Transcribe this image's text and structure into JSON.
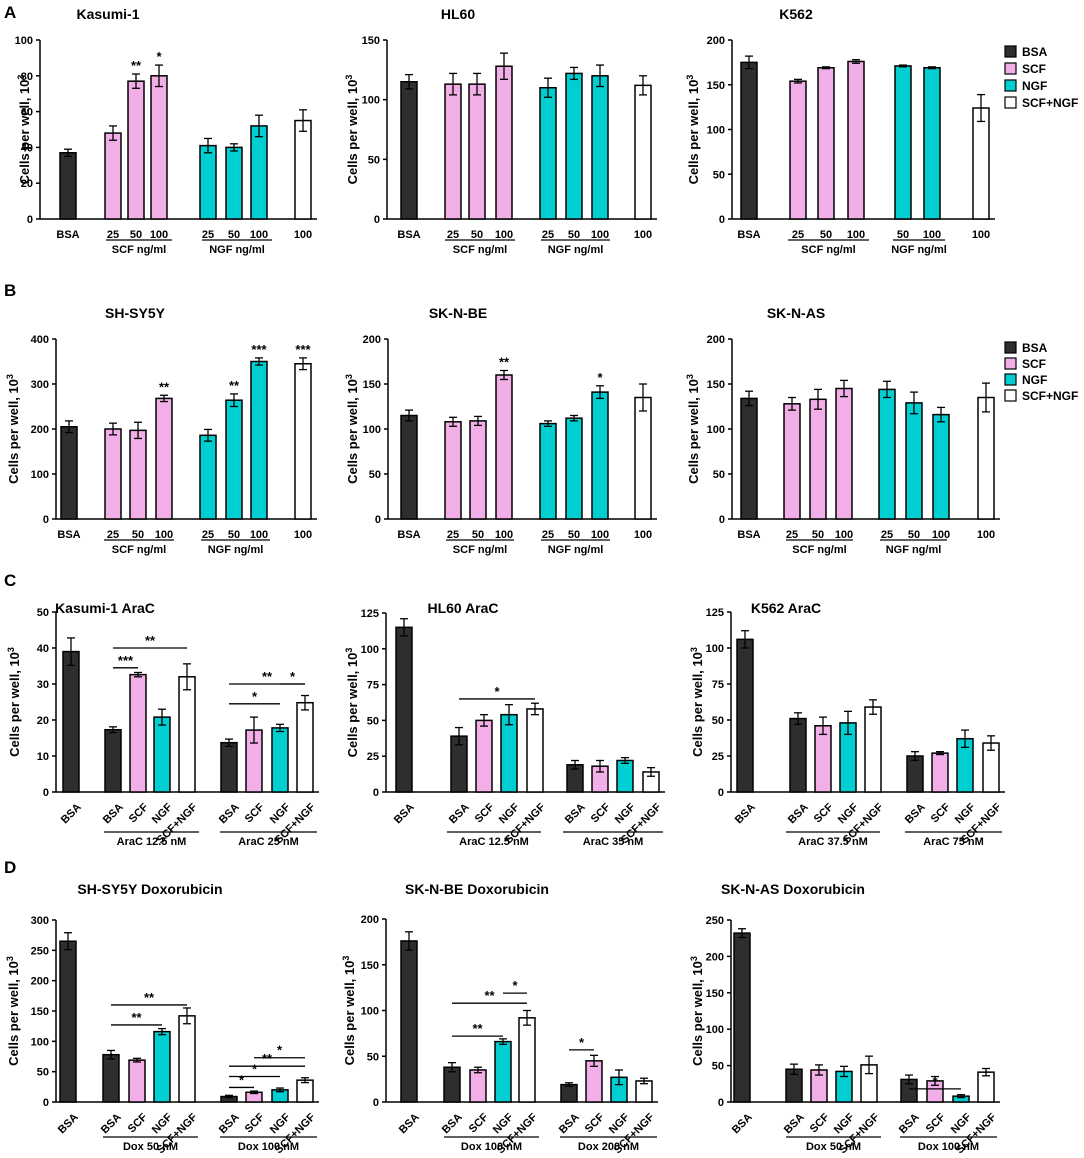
{
  "section_letters": [
    "A",
    "B",
    "C",
    "D"
  ],
  "legend": [
    {
      "label": "BSA",
      "color": "#2e2e2e"
    },
    {
      "label": "SCF",
      "color": "#f2aee6"
    },
    {
      "label": "NGF",
      "color": "#00ced1"
    },
    {
      "label": "SCF+NGF",
      "color": "#ffffff"
    }
  ],
  "colors": {
    "BSA": "#2e2e2e",
    "SCF": "#f2aee6",
    "NGF": "#00ced1",
    "SCF+NGF": "#ffffff",
    "axis": "#000000"
  },
  "chart_data": [
    {
      "type": "bar",
      "title": "Kasumi-1",
      "ylabel": "Cells per well, 10",
      "ylabel_sup": "3",
      "ylim": [
        0,
        100
      ],
      "yticks": [
        0,
        20,
        40,
        60,
        80,
        100
      ],
      "bars": [
        {
          "label": "BSA",
          "value": 37,
          "err": 2,
          "series": "BSA"
        },
        {
          "label": "25",
          "value": 48,
          "err": 4,
          "series": "SCF"
        },
        {
          "label": "50",
          "value": 77,
          "err": 4,
          "series": "SCF",
          "sig": "**"
        },
        {
          "label": "100",
          "value": 80,
          "err": 6,
          "series": "SCF",
          "sig": "*"
        },
        {
          "label": "25",
          "value": 41,
          "err": 4,
          "series": "NGF"
        },
        {
          "label": "50",
          "value": 40,
          "err": 2,
          "series": "NGF"
        },
        {
          "label": "100",
          "value": 52,
          "err": 6,
          "series": "NGF"
        },
        {
          "label": "100",
          "value": 55,
          "err": 6,
          "series": "SCF+NGF"
        }
      ],
      "groups": [
        {
          "label": "SCF ng/ml"
        },
        {
          "label": "NGF ng/ml"
        }
      ],
      "brackets": []
    },
    {
      "type": "bar",
      "title": "HL60",
      "ylabel": "Cells per well, 10",
      "ylabel_sup": "3",
      "ylim": [
        0,
        150
      ],
      "yticks": [
        0,
        50,
        100,
        150
      ],
      "bars": [
        {
          "label": "BSA",
          "value": 115,
          "err": 6,
          "series": "BSA"
        },
        {
          "label": "25",
          "value": 113,
          "err": 9,
          "series": "SCF"
        },
        {
          "label": "50",
          "value": 113,
          "err": 9,
          "series": "SCF"
        },
        {
          "label": "100",
          "value": 128,
          "err": 11,
          "series": "SCF"
        },
        {
          "label": "25",
          "value": 110,
          "err": 8,
          "series": "NGF"
        },
        {
          "label": "50",
          "value": 122,
          "err": 5,
          "series": "NGF"
        },
        {
          "label": "100",
          "value": 120,
          "err": 9,
          "series": "NGF"
        },
        {
          "label": "100",
          "value": 112,
          "err": 8,
          "series": "SCF+NGF"
        }
      ],
      "groups": [
        {
          "label": "SCF ng/ml"
        },
        {
          "label": "NGF ng/ml"
        }
      ],
      "brackets": []
    },
    {
      "type": "bar",
      "title": "K562",
      "ylabel": "Cells per well, 10",
      "ylabel_sup": "3",
      "ylim": [
        0,
        200
      ],
      "yticks": [
        0,
        50,
        100,
        150,
        200
      ],
      "bars": [
        {
          "label": "BSA",
          "value": 175,
          "err": 7,
          "series": "BSA"
        },
        {
          "label": "25",
          "value": 154,
          "err": 2,
          "series": "SCF"
        },
        {
          "label": "50",
          "value": 169,
          "err": 1,
          "series": "SCF"
        },
        {
          "label": "100",
          "value": 176,
          "err": 2,
          "series": "SCF"
        },
        {
          "label": "50",
          "value": 171,
          "err": 1,
          "series": "NGF"
        },
        {
          "label": "100",
          "value": 169,
          "err": 1,
          "series": "NGF"
        },
        {
          "label": "100",
          "value": 124,
          "err": 15,
          "series": "SCF+NGF"
        }
      ],
      "groups": [
        {
          "label": "SCF ng/ml"
        },
        {
          "label": "NGF ng/ml"
        }
      ],
      "brackets": []
    },
    {
      "type": "bar",
      "title": "SH-SY5Y",
      "ylabel": "Cells per well, 10",
      "ylabel_sup": "3",
      "ylim": [
        0,
        400
      ],
      "yticks": [
        0,
        100,
        200,
        300,
        400
      ],
      "bars": [
        {
          "label": "BSA",
          "value": 205,
          "err": 13,
          "series": "BSA"
        },
        {
          "label": "25",
          "value": 200,
          "err": 13,
          "series": "SCF"
        },
        {
          "label": "50",
          "value": 197,
          "err": 18,
          "series": "SCF"
        },
        {
          "label": "100",
          "value": 268,
          "err": 7,
          "series": "SCF",
          "sig": "**"
        },
        {
          "label": "25",
          "value": 186,
          "err": 13,
          "series": "NGF"
        },
        {
          "label": "50",
          "value": 264,
          "err": 14,
          "series": "NGF",
          "sig": "**"
        },
        {
          "label": "100",
          "value": 350,
          "err": 8,
          "series": "NGF",
          "sig": "***"
        },
        {
          "label": "100",
          "value": 345,
          "err": 13,
          "series": "SCF+NGF",
          "sig": "***"
        }
      ],
      "groups": [
        {
          "label": "SCF ng/ml"
        },
        {
          "label": "NGF ng/ml"
        }
      ],
      "brackets": []
    },
    {
      "type": "bar",
      "title": "SK-N-BE",
      "ylabel": "Cells per well, 10",
      "ylabel_sup": "3",
      "ylim": [
        0,
        200
      ],
      "yticks": [
        0,
        50,
        100,
        150,
        200
      ],
      "bars": [
        {
          "label": "BSA",
          "value": 115,
          "err": 6,
          "series": "BSA"
        },
        {
          "label": "25",
          "value": 108,
          "err": 5,
          "series": "SCF"
        },
        {
          "label": "50",
          "value": 109,
          "err": 5,
          "series": "SCF"
        },
        {
          "label": "100",
          "value": 160,
          "err": 5,
          "series": "SCF",
          "sig": "**"
        },
        {
          "label": "25",
          "value": 106,
          "err": 3,
          "series": "NGF"
        },
        {
          "label": "50",
          "value": 112,
          "err": 3,
          "series": "NGF"
        },
        {
          "label": "100",
          "value": 141,
          "err": 7,
          "series": "NGF",
          "sig": "*"
        },
        {
          "label": "100",
          "value": 135,
          "err": 15,
          "series": "SCF+NGF"
        }
      ],
      "groups": [
        {
          "label": "SCF ng/ml"
        },
        {
          "label": "NGF ng/ml"
        }
      ],
      "brackets": []
    },
    {
      "type": "bar",
      "title": "SK-N-AS",
      "ylabel": "Cells per well, 10",
      "ylabel_sup": "3",
      "ylim": [
        0,
        200
      ],
      "yticks": [
        0,
        50,
        100,
        150,
        200
      ],
      "bars": [
        {
          "label": "BSA",
          "value": 134,
          "err": 8,
          "series": "BSA"
        },
        {
          "label": "25",
          "value": 128,
          "err": 7,
          "series": "SCF"
        },
        {
          "label": "50",
          "value": 133,
          "err": 11,
          "series": "SCF"
        },
        {
          "label": "100",
          "value": 145,
          "err": 9,
          "series": "SCF"
        },
        {
          "label": "25",
          "value": 144,
          "err": 9,
          "series": "NGF"
        },
        {
          "label": "50",
          "value": 129,
          "err": 12,
          "series": "NGF"
        },
        {
          "label": "100",
          "value": 116,
          "err": 8,
          "series": "NGF"
        },
        {
          "label": "100",
          "value": 135,
          "err": 16,
          "series": "SCF+NGF"
        }
      ],
      "groups": [
        {
          "label": "SCF ng/ml"
        },
        {
          "label": "NGF ng/ml"
        }
      ],
      "brackets": []
    },
    {
      "type": "bar",
      "title": "Kasumi-1 AraC",
      "ylabel": "Cells per well, 10",
      "ylabel_sup": "3",
      "ylim": [
        0,
        50
      ],
      "yticks": [
        0,
        10,
        20,
        30,
        40,
        50
      ],
      "bars": [
        {
          "label": "BSA",
          "value": 39,
          "err": 3.8,
          "series": "BSA"
        },
        {
          "label": "BSA",
          "value": 17.3,
          "err": 0.8,
          "series": "BSA"
        },
        {
          "label": "SCF",
          "value": 32.6,
          "err": 0.6,
          "series": "SCF"
        },
        {
          "label": "NGF",
          "value": 20.8,
          "err": 2.2,
          "series": "NGF"
        },
        {
          "label": "SCF+NGF",
          "value": 32,
          "err": 3.6,
          "series": "SCF+NGF"
        },
        {
          "label": "BSA",
          "value": 13.7,
          "err": 1,
          "series": "BSA"
        },
        {
          "label": "SCF",
          "value": 17.2,
          "err": 3.6,
          "series": "SCF"
        },
        {
          "label": "NGF",
          "value": 17.8,
          "err": 1,
          "series": "NGF"
        },
        {
          "label": "SCF+NGF",
          "value": 24.8,
          "err": 2,
          "series": "SCF+NGF"
        }
      ],
      "groups": [
        {
          "label": "AraC 12.5 nM"
        },
        {
          "label": "AraC 25 nM"
        }
      ],
      "brackets": [
        {
          "v": 34.5,
          "label": "***"
        },
        {
          "v": 40,
          "label": "**"
        },
        {
          "v": 24.5,
          "label": "*"
        },
        {
          "v": 30,
          "label": "**"
        },
        {
          "v": 30,
          "label": "*"
        }
      ]
    },
    {
      "type": "bar",
      "title": "HL60 AraC",
      "ylabel": "Cells per well, 10",
      "ylabel_sup": "3",
      "ylim": [
        0,
        125
      ],
      "yticks": [
        0,
        25,
        50,
        75,
        100,
        125
      ],
      "bars": [
        {
          "label": "BSA",
          "value": 115,
          "err": 6,
          "series": "BSA"
        },
        {
          "label": "BSA",
          "value": 39,
          "err": 6,
          "series": "BSA"
        },
        {
          "label": "SCF",
          "value": 50,
          "err": 4,
          "series": "SCF"
        },
        {
          "label": "NGF",
          "value": 54,
          "err": 7,
          "series": "NGF"
        },
        {
          "label": "SCF+NGF",
          "value": 58,
          "err": 4,
          "series": "SCF+NGF"
        },
        {
          "label": "BSA",
          "value": 19,
          "err": 3,
          "series": "BSA"
        },
        {
          "label": "SCF",
          "value": 18,
          "err": 4,
          "series": "SCF"
        },
        {
          "label": "NGF",
          "value": 22,
          "err": 2,
          "series": "NGF"
        },
        {
          "label": "SCF+NGF",
          "value": 14,
          "err": 3,
          "series": "SCF+NGF"
        }
      ],
      "groups": [
        {
          "label": "AraC 12.5 nM"
        },
        {
          "label": "AraC 35 nM"
        }
      ],
      "brackets": [
        {
          "v": 65,
          "label": "*"
        }
      ]
    },
    {
      "type": "bar",
      "title": "K562 AraC",
      "ylabel": "Cells per well, 10",
      "ylabel_sup": "3",
      "ylim": [
        0,
        125
      ],
      "yticks": [
        0,
        25,
        50,
        75,
        100,
        125
      ],
      "bars": [
        {
          "label": "BSA",
          "value": 106,
          "err": 6,
          "series": "BSA"
        },
        {
          "label": "BSA",
          "value": 51,
          "err": 4,
          "series": "BSA"
        },
        {
          "label": "SCF",
          "value": 46,
          "err": 6,
          "series": "SCF"
        },
        {
          "label": "NGF",
          "value": 48,
          "err": 8,
          "series": "NGF"
        },
        {
          "label": "SCF+NGF",
          "value": 59,
          "err": 5,
          "series": "SCF+NGF"
        },
        {
          "label": "BSA",
          "value": 25,
          "err": 3,
          "series": "BSA"
        },
        {
          "label": "SCF",
          "value": 27,
          "err": 1,
          "series": "SCF"
        },
        {
          "label": "NGF",
          "value": 37,
          "err": 6,
          "series": "NGF"
        },
        {
          "label": "SCF+NGF",
          "value": 34,
          "err": 5,
          "series": "SCF+NGF"
        }
      ],
      "groups": [
        {
          "label": "AraC 37.5 nM"
        },
        {
          "label": "AraC 75 nM"
        }
      ],
      "brackets": []
    },
    {
      "type": "bar",
      "title": "SH-SY5Y Doxorubicin",
      "ylabel": "Cells per well, 10",
      "ylabel_sup": "3",
      "ylim": [
        0,
        300
      ],
      "yticks": [
        0,
        50,
        100,
        150,
        200,
        250,
        300
      ],
      "bars": [
        {
          "label": "BSA",
          "value": 265,
          "err": 14,
          "series": "BSA"
        },
        {
          "label": "BSA",
          "value": 78,
          "err": 7,
          "series": "BSA"
        },
        {
          "label": "SCF",
          "value": 69,
          "err": 3,
          "series": "SCF"
        },
        {
          "label": "NGF",
          "value": 116,
          "err": 5,
          "series": "NGF"
        },
        {
          "label": "SCF+NGF",
          "value": 142,
          "err": 13,
          "series": "SCF+NGF"
        },
        {
          "label": "BSA",
          "value": 9,
          "err": 2,
          "series": "BSA"
        },
        {
          "label": "SCF",
          "value": 16,
          "err": 2,
          "series": "SCF"
        },
        {
          "label": "NGF",
          "value": 20,
          "err": 3,
          "series": "NGF"
        },
        {
          "label": "SCF+NGF",
          "value": 36,
          "err": 4,
          "series": "SCF+NGF"
        }
      ],
      "groups": [
        {
          "label": "Dox 50 nM"
        },
        {
          "label": "Dox 100 nM"
        }
      ],
      "brackets": [
        {
          "v": 127,
          "label": "**"
        },
        {
          "v": 160,
          "label": "**"
        },
        {
          "v": 24,
          "label": "*"
        },
        {
          "v": 42,
          "label": "*"
        },
        {
          "v": 59,
          "label": "**"
        },
        {
          "v": 73,
          "label": "*"
        }
      ]
    },
    {
      "type": "bar",
      "title": "SK-N-BE Doxorubicin",
      "ylabel": "Cells per well, 10",
      "ylabel_sup": "3",
      "ylim": [
        0,
        200
      ],
      "yticks": [
        0,
        50,
        100,
        150,
        200
      ],
      "bars": [
        {
          "label": "BSA",
          "value": 176,
          "err": 10,
          "series": "BSA"
        },
        {
          "label": "BSA",
          "value": 38,
          "err": 5,
          "series": "BSA"
        },
        {
          "label": "SCF",
          "value": 35,
          "err": 3,
          "series": "SCF"
        },
        {
          "label": "NGF",
          "value": 66,
          "err": 3,
          "series": "NGF"
        },
        {
          "label": "SCF+NGF",
          "value": 92,
          "err": 8,
          "series": "SCF+NGF"
        },
        {
          "label": "BSA",
          "value": 19,
          "err": 2,
          "series": "BSA"
        },
        {
          "label": "SCF",
          "value": 45,
          "err": 6,
          "series": "SCF"
        },
        {
          "label": "NGF",
          "value": 27,
          "err": 8,
          "series": "NGF"
        },
        {
          "label": "SCF+NGF",
          "value": 23,
          "err": 3,
          "series": "SCF+NGF"
        }
      ],
      "groups": [
        {
          "label": "Dox 100 nM"
        },
        {
          "label": "Dox 200 nM"
        }
      ],
      "brackets": [
        {
          "v": 72,
          "label": "**"
        },
        {
          "v": 108,
          "label": "**"
        },
        {
          "v": 119,
          "label": "*"
        },
        {
          "v": 57,
          "label": "*"
        }
      ]
    },
    {
      "type": "bar",
      "title": "SK-N-AS Doxorubicin",
      "ylabel": "Cells per well, 10",
      "ylabel_sup": "3",
      "ylim": [
        0,
        250
      ],
      "yticks": [
        0,
        50,
        100,
        150,
        200,
        250
      ],
      "bars": [
        {
          "label": "BSA",
          "value": 232,
          "err": 6,
          "series": "BSA"
        },
        {
          "label": "BSA",
          "value": 45,
          "err": 7,
          "series": "BSA"
        },
        {
          "label": "SCF",
          "value": 44,
          "err": 7,
          "series": "SCF"
        },
        {
          "label": "NGF",
          "value": 42,
          "err": 7,
          "series": "NGF"
        },
        {
          "label": "SCF+NGF",
          "value": 51,
          "err": 12,
          "series": "SCF+NGF"
        },
        {
          "label": "BSA",
          "value": 31,
          "err": 6,
          "series": "BSA"
        },
        {
          "label": "SCF",
          "value": 29,
          "err": 6,
          "series": "SCF"
        },
        {
          "label": "NGF",
          "value": 8,
          "err": 2,
          "series": "NGF"
        },
        {
          "label": "SCF+NGF",
          "value": 41,
          "err": 5,
          "series": "SCF+NGF"
        }
      ],
      "groups": [
        {
          "label": "Dox 50 nM"
        },
        {
          "label": "Dox 100 nM"
        }
      ],
      "brackets": [
        {
          "v": 18,
          "label": "*"
        }
      ]
    }
  ]
}
